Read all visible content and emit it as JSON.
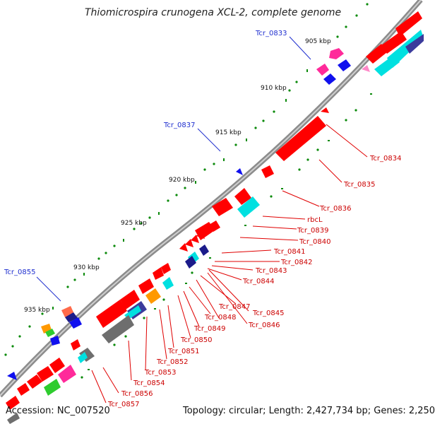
{
  "map": {
    "title": "Thiomicrospira crunogena XCL-2, complete genome",
    "accession_label": "Accession: NC_007520",
    "summary_label": "Topology: circular; Length: 2,427,734 bp; Genes: 2,250",
    "colors": {
      "backbone": "#8c8c8c",
      "forward_gene": "#ff0000",
      "cyan_feature": "#00e0e0",
      "navy_feature": "#3b3b9c",
      "gray_feature": "#6e6e6e",
      "green_feature": "#2ecc2e",
      "orange_feature": "#ff9900",
      "pink_feature": "#ff2a9a",
      "blue_feature": "#1010ee",
      "tick_mark": "#0b8a0b",
      "red_label": "#cc0000",
      "blue_label": "#1f2fcf"
    },
    "scale_ticks": [
      "905 kbp",
      "910 kbp",
      "915 kbp",
      "920 kbp",
      "925 kbp",
      "930 kbp",
      "935 kbp"
    ],
    "red_gene_labels": [
      "Tcr_0834",
      "Tcr_0835",
      "Tcr_0836",
      "rbcL",
      "Tcr_0839",
      "Tcr_0840",
      "Tcr_0841",
      "Tcr_0842",
      "Tcr_0843",
      "Tcr_0844",
      "Tcr_0845",
      "Tcr_0846",
      "Tcr_0847",
      "Tcr_0848",
      "Tcr_0849",
      "Tcr_0850",
      "Tcr_0851",
      "Tcr_0852",
      "Tcr_0853",
      "Tcr_0854",
      "Tcr_0856",
      "Tcr_0857"
    ],
    "blue_gene_labels": [
      "Tcr_0833",
      "Tcr_0837",
      "Tcr_0855"
    ]
  }
}
